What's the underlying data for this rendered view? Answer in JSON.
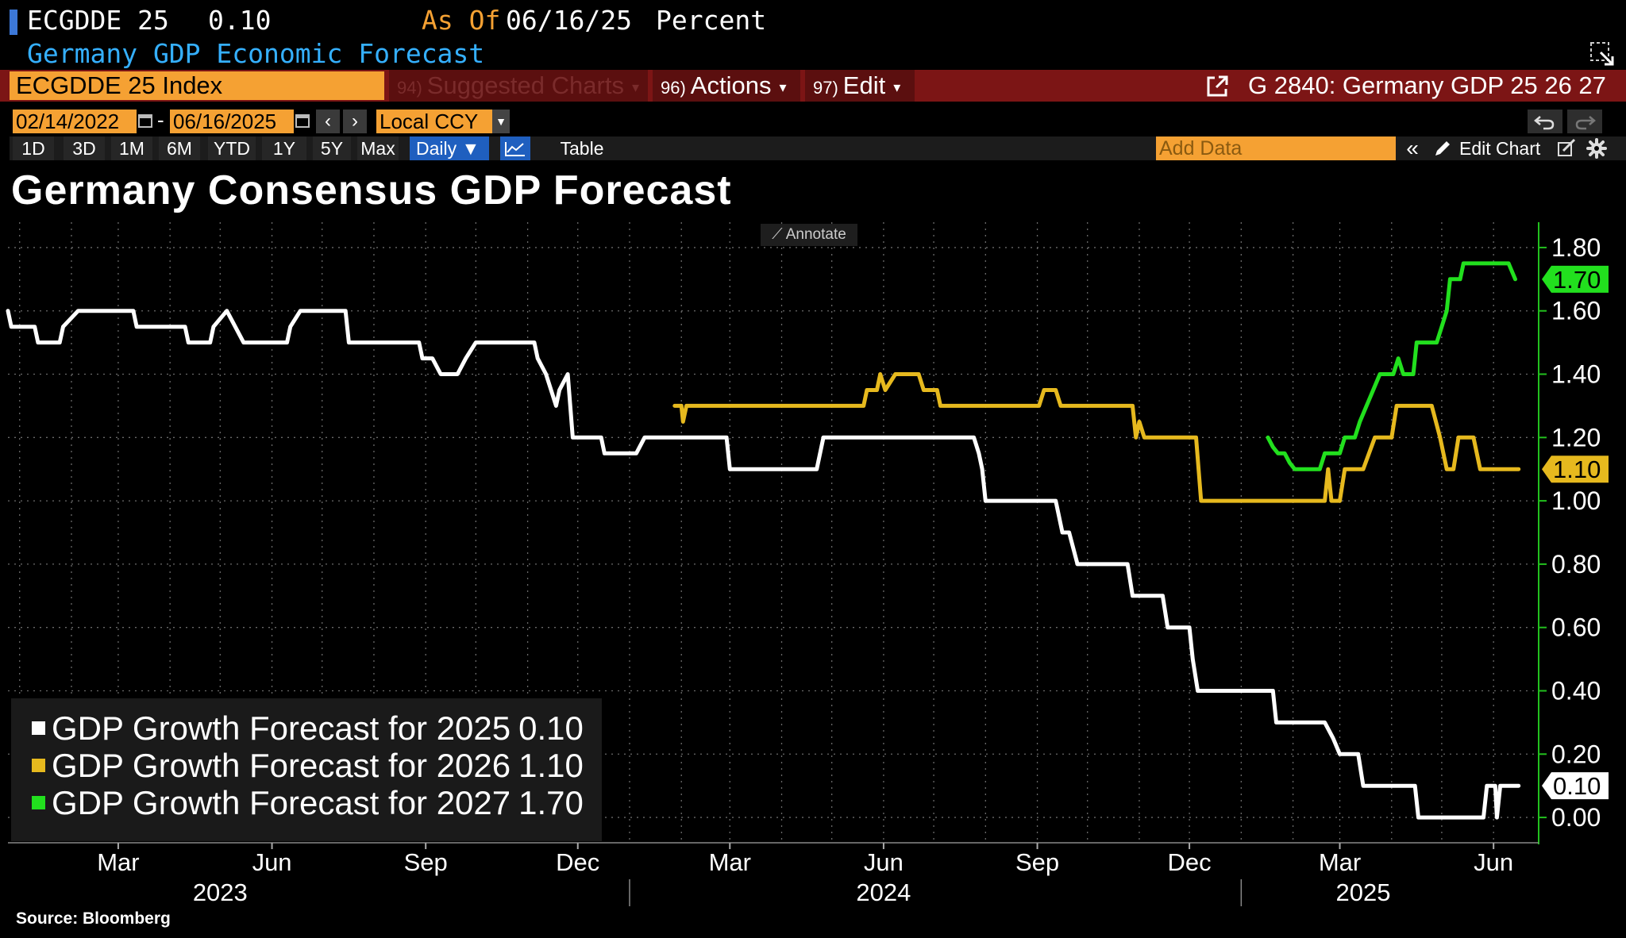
{
  "header": {
    "ticker": "ECGDDE 25",
    "value": "0.10",
    "as_of_label": "As Of",
    "as_of_date": "06/16/25",
    "units": "Percent",
    "description": "Germany GDP Economic Forecast"
  },
  "menubar": {
    "security": "ECGDDE 25 Index",
    "suggested_num": "94)",
    "suggested_label": "Suggested Charts",
    "actions_num": "96)",
    "actions_label": "Actions",
    "edit_num": "97)",
    "edit_label": "Edit",
    "chart_title": "G 2840: Germany GDP 25 26 27"
  },
  "controls": {
    "start_date": "02/14/2022",
    "end_date": "06/16/2025",
    "date_separator": "-",
    "currency": "Local CCY",
    "ranges": [
      "1D",
      "3D",
      "1M",
      "6M",
      "YTD",
      "1Y",
      "5Y",
      "Max"
    ],
    "frequency": "Daily",
    "table_label": "Table",
    "add_data_placeholder": "Add Data",
    "edit_chart_label": "Edit Chart"
  },
  "annotate_label": "Annotate",
  "source": "Source: Bloomberg",
  "colors": {
    "series_2025": "#ffffff",
    "series_2026": "#e6b91e",
    "series_2027": "#22e01e",
    "axis": "#22c01e",
    "accent": "#f5a133",
    "menubar": "#7c1515"
  },
  "chart_data": {
    "type": "line",
    "title": "Germany Consensus GDP Forecast",
    "ylim": [
      -0.08,
      1.88
    ],
    "xlim": [
      "2022-12-25",
      "2025-06-28"
    ],
    "grid": true,
    "legend_position": "bottom-left",
    "x_tick_labels": [
      "Mar",
      "Jun",
      "Sep",
      "Dec",
      "Mar",
      "Jun",
      "Sep",
      "Dec",
      "Mar",
      "Jun"
    ],
    "x_ticks": [
      "2023-03-01",
      "2023-06-01",
      "2023-09-01",
      "2023-12-01",
      "2024-03-01",
      "2024-06-01",
      "2024-09-01",
      "2024-12-01",
      "2025-03-01",
      "2025-06-01"
    ],
    "years": [
      "2023",
      "2024",
      "2025"
    ],
    "year_ticks": [
      "2023-05-01",
      "2024-06-01",
      "2025-03-15"
    ],
    "year_dividers": [
      "2024-01-01",
      "2025-01-01"
    ],
    "y_ticks": [
      0.0,
      0.2,
      0.4,
      0.6,
      0.8,
      1.0,
      1.2,
      1.4,
      1.6,
      1.8
    ],
    "y_tick_labels": [
      "0.00",
      "0.20",
      "0.40",
      "0.60",
      "0.80",
      "1.00",
      "1.20",
      "1.40",
      "1.60",
      "1.80"
    ],
    "series": [
      {
        "name": "GDP Growth Forecast for 2025",
        "last": "0.10",
        "color": "#ffffff",
        "points": [
          [
            "2022-12-25",
            1.6
          ],
          [
            "2022-12-27",
            1.55
          ],
          [
            "2023-01-10",
            1.55
          ],
          [
            "2023-01-12",
            1.5
          ],
          [
            "2023-01-25",
            1.5
          ],
          [
            "2023-01-27",
            1.55
          ],
          [
            "2023-02-05",
            1.6
          ],
          [
            "2023-03-10",
            1.6
          ],
          [
            "2023-03-12",
            1.55
          ],
          [
            "2023-04-10",
            1.55
          ],
          [
            "2023-04-12",
            1.5
          ],
          [
            "2023-04-25",
            1.5
          ],
          [
            "2023-04-27",
            1.55
          ],
          [
            "2023-05-05",
            1.6
          ],
          [
            "2023-05-10",
            1.55
          ],
          [
            "2023-05-15",
            1.5
          ],
          [
            "2023-06-10",
            1.5
          ],
          [
            "2023-06-12",
            1.55
          ],
          [
            "2023-06-18",
            1.6
          ],
          [
            "2023-07-15",
            1.6
          ],
          [
            "2023-07-17",
            1.5
          ],
          [
            "2023-08-28",
            1.5
          ],
          [
            "2023-08-30",
            1.45
          ],
          [
            "2023-09-05",
            1.45
          ],
          [
            "2023-09-10",
            1.4
          ],
          [
            "2023-09-20",
            1.4
          ],
          [
            "2023-09-25",
            1.45
          ],
          [
            "2023-10-01",
            1.5
          ],
          [
            "2023-11-05",
            1.5
          ],
          [
            "2023-11-07",
            1.45
          ],
          [
            "2023-11-12",
            1.4
          ],
          [
            "2023-11-15",
            1.35
          ],
          [
            "2023-11-18",
            1.3
          ],
          [
            "2023-11-20",
            1.35
          ],
          [
            "2023-11-25",
            1.4
          ],
          [
            "2023-11-28",
            1.2
          ],
          [
            "2023-12-15",
            1.2
          ],
          [
            "2023-12-17",
            1.15
          ],
          [
            "2024-01-05",
            1.15
          ],
          [
            "2024-01-10",
            1.2
          ],
          [
            "2024-02-28",
            1.2
          ],
          [
            "2024-03-01",
            1.1
          ],
          [
            "2024-04-22",
            1.1
          ],
          [
            "2024-04-26",
            1.2
          ],
          [
            "2024-07-25",
            1.2
          ],
          [
            "2024-07-28",
            1.15
          ],
          [
            "2024-07-30",
            1.1
          ],
          [
            "2024-08-01",
            1.0
          ],
          [
            "2024-09-12",
            1.0
          ],
          [
            "2024-09-16",
            0.9
          ],
          [
            "2024-09-20",
            0.9
          ],
          [
            "2024-09-25",
            0.8
          ],
          [
            "2024-10-25",
            0.8
          ],
          [
            "2024-10-28",
            0.7
          ],
          [
            "2024-11-15",
            0.7
          ],
          [
            "2024-11-18",
            0.6
          ],
          [
            "2024-12-01",
            0.6
          ],
          [
            "2024-12-03",
            0.5
          ],
          [
            "2024-12-06",
            0.4
          ],
          [
            "2025-01-20",
            0.4
          ],
          [
            "2025-01-22",
            0.3
          ],
          [
            "2025-02-20",
            0.3
          ],
          [
            "2025-02-25",
            0.25
          ],
          [
            "2025-03-01",
            0.2
          ],
          [
            "2025-03-12",
            0.2
          ],
          [
            "2025-03-15",
            0.1
          ],
          [
            "2025-04-15",
            0.1
          ],
          [
            "2025-04-17",
            0.0
          ],
          [
            "2025-05-26",
            0.0
          ],
          [
            "2025-05-28",
            0.1
          ],
          [
            "2025-06-02",
            0.1
          ],
          [
            "2025-06-03",
            0.0
          ],
          [
            "2025-06-05",
            0.1
          ],
          [
            "2025-06-16",
            0.1
          ]
        ]
      },
      {
        "name": "GDP Growth Forecast for 2026",
        "last": "1.10",
        "color": "#e6b91e",
        "points": [
          [
            "2024-01-28",
            1.3
          ],
          [
            "2024-02-01",
            1.3
          ],
          [
            "2024-02-02",
            1.25
          ],
          [
            "2024-02-04",
            1.3
          ],
          [
            "2024-05-20",
            1.3
          ],
          [
            "2024-05-22",
            1.35
          ],
          [
            "2024-05-28",
            1.35
          ],
          [
            "2024-05-30",
            1.4
          ],
          [
            "2024-06-02",
            1.35
          ],
          [
            "2024-06-08",
            1.4
          ],
          [
            "2024-06-22",
            1.4
          ],
          [
            "2024-06-25",
            1.35
          ],
          [
            "2024-07-03",
            1.35
          ],
          [
            "2024-07-05",
            1.3
          ],
          [
            "2024-09-02",
            1.3
          ],
          [
            "2024-09-05",
            1.35
          ],
          [
            "2024-09-12",
            1.35
          ],
          [
            "2024-09-15",
            1.3
          ],
          [
            "2024-10-28",
            1.3
          ],
          [
            "2024-10-30",
            1.2
          ],
          [
            "2024-11-01",
            1.25
          ],
          [
            "2024-11-04",
            1.2
          ],
          [
            "2024-12-05",
            1.2
          ],
          [
            "2024-12-08",
            1.0
          ],
          [
            "2025-02-20",
            1.0
          ],
          [
            "2025-02-22",
            1.1
          ],
          [
            "2025-02-24",
            1.0
          ],
          [
            "2025-03-01",
            1.0
          ],
          [
            "2025-03-04",
            1.1
          ],
          [
            "2025-03-15",
            1.1
          ],
          [
            "2025-03-22",
            1.2
          ],
          [
            "2025-04-01",
            1.2
          ],
          [
            "2025-04-04",
            1.3
          ],
          [
            "2025-04-25",
            1.3
          ],
          [
            "2025-04-30",
            1.2
          ],
          [
            "2025-05-04",
            1.1
          ],
          [
            "2025-05-08",
            1.1
          ],
          [
            "2025-05-11",
            1.2
          ],
          [
            "2025-05-20",
            1.2
          ],
          [
            "2025-05-24",
            1.1
          ],
          [
            "2025-06-16",
            1.1
          ]
        ]
      },
      {
        "name": "GDP Growth Forecast for 2027",
        "last": "1.70",
        "color": "#22e01e",
        "points": [
          [
            "2025-01-17",
            1.2
          ],
          [
            "2025-01-20",
            1.17
          ],
          [
            "2025-01-23",
            1.15
          ],
          [
            "2025-01-27",
            1.15
          ],
          [
            "2025-01-30",
            1.12
          ],
          [
            "2025-02-02",
            1.1
          ],
          [
            "2025-02-17",
            1.1
          ],
          [
            "2025-02-20",
            1.15
          ],
          [
            "2025-03-01",
            1.15
          ],
          [
            "2025-03-04",
            1.2
          ],
          [
            "2025-03-10",
            1.2
          ],
          [
            "2025-03-13",
            1.25
          ],
          [
            "2025-03-17",
            1.3
          ],
          [
            "2025-03-21",
            1.35
          ],
          [
            "2025-03-25",
            1.4
          ],
          [
            "2025-04-02",
            1.4
          ],
          [
            "2025-04-05",
            1.45
          ],
          [
            "2025-04-08",
            1.4
          ],
          [
            "2025-04-14",
            1.4
          ],
          [
            "2025-04-16",
            1.5
          ],
          [
            "2025-04-28",
            1.5
          ],
          [
            "2025-05-01",
            1.55
          ],
          [
            "2025-05-04",
            1.6
          ],
          [
            "2025-05-06",
            1.7
          ],
          [
            "2025-05-12",
            1.7
          ],
          [
            "2025-05-14",
            1.75
          ],
          [
            "2025-06-10",
            1.75
          ],
          [
            "2025-06-14",
            1.7
          ]
        ]
      }
    ]
  }
}
